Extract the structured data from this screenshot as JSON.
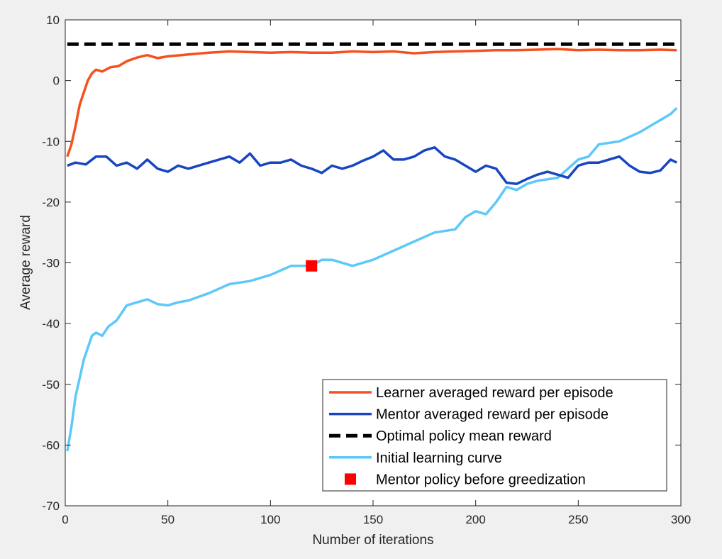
{
  "chart_data": {
    "type": "line",
    "title": "",
    "xlabel": "Number of iterations",
    "ylabel": "Average reward",
    "xlim": [
      0,
      300
    ],
    "ylim": [
      -70,
      10
    ],
    "xticks": [
      0,
      50,
      100,
      150,
      200,
      250,
      300
    ],
    "yticks": [
      -70,
      -60,
      -50,
      -40,
      -30,
      -20,
      -10,
      0,
      10
    ],
    "grid": false,
    "legend_position": "bottom-right",
    "series": [
      {
        "name": "Learner averaged reward per episode",
        "color": "#f4511e",
        "style": "solid",
        "x": [
          1,
          3,
          5,
          7,
          9,
          11,
          13,
          15,
          18,
          22,
          26,
          30,
          35,
          40,
          45,
          50,
          60,
          70,
          80,
          90,
          100,
          110,
          120,
          130,
          140,
          150,
          160,
          170,
          180,
          190,
          200,
          210,
          220,
          230,
          240,
          250,
          260,
          270,
          280,
          290,
          298
        ],
        "y": [
          -12.5,
          -10.5,
          -7.5,
          -4,
          -2,
          0,
          1.2,
          1.8,
          1.5,
          2.2,
          2.4,
          3.2,
          3.8,
          4.2,
          3.7,
          4.0,
          4.3,
          4.6,
          4.8,
          4.7,
          4.6,
          4.7,
          4.6,
          4.6,
          4.8,
          4.7,
          4.8,
          4.5,
          4.7,
          4.8,
          4.9,
          5.0,
          5.0,
          5.1,
          5.2,
          5.0,
          5.1,
          5.0,
          5.0,
          5.1,
          5.0
        ]
      },
      {
        "name": "Mentor averaged reward per episode",
        "color": "#1746c0",
        "style": "solid",
        "x": [
          1,
          5,
          10,
          15,
          20,
          25,
          30,
          35,
          40,
          45,
          50,
          55,
          60,
          70,
          80,
          85,
          90,
          95,
          100,
          105,
          110,
          115,
          120,
          125,
          130,
          135,
          140,
          145,
          150,
          155,
          160,
          165,
          170,
          175,
          180,
          185,
          190,
          195,
          200,
          205,
          210,
          215,
          220,
          225,
          230,
          235,
          240,
          245,
          250,
          255,
          260,
          265,
          270,
          275,
          280,
          285,
          290,
          295,
          298
        ],
        "y": [
          -14,
          -13.5,
          -13.8,
          -12.5,
          -12.5,
          -14,
          -13.5,
          -14.5,
          -13,
          -14.5,
          -15,
          -14,
          -14.5,
          -13.5,
          -12.5,
          -13.5,
          -12,
          -14,
          -13.5,
          -13.5,
          -13,
          -14,
          -14.5,
          -15.2,
          -14,
          -14.5,
          -14,
          -13.2,
          -12.5,
          -11.5,
          -13,
          -13,
          -12.5,
          -11.5,
          -11,
          -12.5,
          -13,
          -14,
          -15,
          -14,
          -14.5,
          -16.8,
          -17,
          -16.2,
          -15.5,
          -15,
          -15.5,
          -16,
          -14,
          -13.5,
          -13.5,
          -13,
          -12.5,
          -14,
          -15,
          -15.2,
          -14.8,
          -13,
          -13.5
        ]
      },
      {
        "name": "Optimal policy mean reward",
        "color": "#000000",
        "style": "dashed",
        "x": [
          1,
          298
        ],
        "y": [
          6,
          6
        ]
      },
      {
        "name": "Initial learning curve",
        "color": "#5ec8f8",
        "style": "solid",
        "x": [
          1,
          3,
          5,
          7,
          9,
          11,
          13,
          15,
          18,
          21,
          25,
          30,
          35,
          40,
          45,
          50,
          55,
          60,
          70,
          80,
          90,
          100,
          110,
          120,
          125,
          130,
          140,
          150,
          160,
          170,
          180,
          190,
          195,
          200,
          205,
          210,
          215,
          220,
          225,
          230,
          240,
          245,
          250,
          255,
          260,
          270,
          280,
          285,
          290,
          295,
          298
        ],
        "y": [
          -61,
          -57,
          -52,
          -49,
          -46,
          -44,
          -42,
          -41.5,
          -42,
          -40.5,
          -39.5,
          -37,
          -36.5,
          -36,
          -36.8,
          -37,
          -36.5,
          -36.2,
          -35,
          -33.5,
          -33,
          -32,
          -30.5,
          -30.5,
          -29.5,
          -29.5,
          -30.5,
          -29.5,
          -28,
          -26.5,
          -25,
          -24.5,
          -22.5,
          -21.5,
          -22,
          -20,
          -17.5,
          -18,
          -17,
          -16.5,
          -16,
          -14.5,
          -13,
          -12.5,
          -10.5,
          -10,
          -8.5,
          -7.5,
          -6.5,
          -5.5,
          -4.5
        ]
      },
      {
        "name": "Mentor policy before greedization",
        "color": "#ff0000",
        "style": "marker",
        "x": [
          120
        ],
        "y": [
          -30.5
        ]
      }
    ]
  }
}
